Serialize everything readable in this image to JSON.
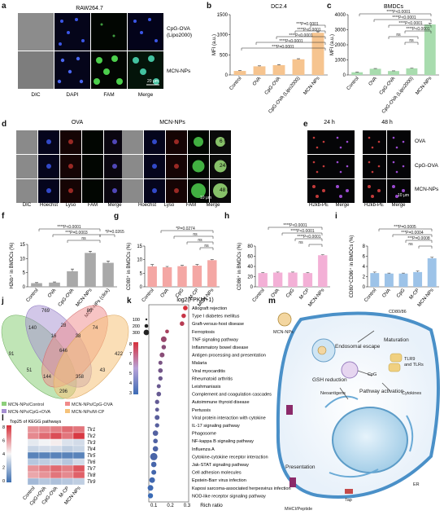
{
  "panel_letters": [
    "a",
    "b",
    "c",
    "d",
    "e",
    "f",
    "g",
    "h",
    "i",
    "j",
    "k",
    "l",
    "m"
  ],
  "panel_a": {
    "cell_line": "RAW264.7",
    "columns": [
      "DIC",
      "DAPI",
      "FAM",
      "Merge"
    ],
    "rows": [
      "CpG-OVA\n(Lipo2000)",
      "MCN-NPs"
    ],
    "row_line1": "CpG-OVA",
    "row_line2": "(Lipo2000)",
    "row2": "MCN-NPs",
    "scale": "20 μm"
  },
  "panel_d": {
    "group_left": "OVA",
    "group_right": "MCN-NPs",
    "columns": [
      "DIC",
      "Hoechst",
      "Lyso",
      "FAM",
      "Merge"
    ],
    "times": [
      "6 h",
      "24 h",
      "48 h"
    ],
    "scale": "10 μm"
  },
  "panel_e": {
    "times": [
      "24 h",
      "48 h"
    ],
    "columns": [
      "H2kb-PE",
      "Merge"
    ],
    "rows": [
      "OVA",
      "CpG-OVA",
      "MCN-NPs"
    ],
    "scale": "10 μm"
  },
  "sig_labels": {
    "p4": "****P<0.0001",
    "p3": "***P=0.0001",
    "ns": "ns",
    "f1": "****P<0.0001",
    "f2": "***P=0.0003",
    "f3": "*P=0.0265",
    "g1": "*P=0.0274",
    "i1": "***P=0.0005",
    "i2": "***P=0.0004",
    "i3": "***P=0.0008"
  },
  "chart_data": [
    {
      "panel": "b",
      "type": "bar",
      "title": "DC2.4",
      "ylabel": "MFI (a.u.)",
      "ylim": [
        0,
        1500
      ],
      "yticks": [
        0,
        500,
        1000,
        1500
      ],
      "categories": [
        "Control",
        "OVA",
        "CpG-OVA",
        "CpG-OVA (Lipo2000)",
        "MCN-NPs"
      ],
      "values": [
        100,
        215,
        245,
        390,
        1050
      ],
      "errors": [
        8,
        12,
        12,
        15,
        25
      ],
      "color": "#f6c48f"
    },
    {
      "panel": "c",
      "type": "bar",
      "title": "BMDCs",
      "ylabel": "MFI (a.u.)",
      "ylim": [
        0,
        4000
      ],
      "yticks": [
        0,
        1000,
        2000,
        3000,
        4000
      ],
      "categories": [
        "Control",
        "OVA",
        "CpG-OVA",
        "CpG-OVA (Lipo2000)",
        "MCN-NPs"
      ],
      "values": [
        180,
        410,
        260,
        440,
        3350
      ],
      "errors": [
        15,
        20,
        15,
        20,
        80
      ],
      "color": "#a8dcae"
    },
    {
      "panel": "f",
      "type": "bar",
      "ylabel": "H2kb⁺ in BMDCs (%)",
      "ylim": [
        0,
        15
      ],
      "yticks": [
        0,
        5,
        10,
        15
      ],
      "categories": [
        "Control",
        "OVA",
        "CpG-OVA",
        "MCN-NPs",
        "MCN-NPs (click)"
      ],
      "values": [
        1.3,
        1.5,
        5.5,
        12,
        8.5
      ],
      "errors": [
        0.2,
        0.2,
        0.8,
        0.6,
        0.6
      ],
      "color": "#a9a9a9"
    },
    {
      "panel": "g",
      "type": "bar",
      "ylabel": "CD80⁺ in BMDCs (%)",
      "ylim": [
        0,
        15
      ],
      "yticks": [
        0,
        5,
        10,
        15
      ],
      "categories": [
        "Control",
        "OVA",
        "CpG",
        "M-CP",
        "MCN-NPs"
      ],
      "values": [
        7.5,
        7.2,
        7.6,
        7.8,
        9.8
      ],
      "errors": [
        0.7,
        0.3,
        0.3,
        0.4,
        0.2
      ],
      "color": "#f4a7a4"
    },
    {
      "panel": "h",
      "type": "bar",
      "ylabel": "CD86⁺ in BMDCs (%)",
      "ylim": [
        0,
        80
      ],
      "yticks": [
        0,
        20,
        40,
        60,
        80
      ],
      "categories": [
        "Control",
        "OVA",
        "CpG",
        "M-CP",
        "MCN-NPs"
      ],
      "values": [
        27,
        28,
        28,
        27,
        62
      ],
      "errors": [
        1,
        1,
        1,
        1,
        1
      ],
      "color": "#f3b0d6"
    },
    {
      "panel": "i",
      "type": "bar",
      "ylabel": "CD80⁺CD86⁺ in BMDCs (%)",
      "ylim": [
        0,
        8
      ],
      "yticks": [
        0,
        2,
        4,
        6,
        8
      ],
      "categories": [
        "Control",
        "OVA",
        "CpG",
        "M-CP",
        "MCN-NPs"
      ],
      "values": [
        2.7,
        2.6,
        2.6,
        2.9,
        5.6
      ],
      "errors": [
        0.2,
        0.1,
        0.1,
        0.2,
        0.2
      ],
      "color": "#9dc3e8"
    },
    {
      "panel": "j",
      "type": "venn",
      "sets": [
        "MCN-NPs/Control",
        "MCN-NPs/CpG-OVA",
        "MCN-NPs/CpG+OVA",
        "MCN-NPs/M-CP"
      ],
      "counts": [
        "769",
        "80",
        "140",
        "28",
        "74",
        "91",
        "646",
        "422",
        "51",
        "358",
        "144",
        "43",
        "296",
        "16",
        "38"
      ]
    },
    {
      "panel": "k",
      "type": "scatter",
      "title": "Top25 of KEGG pathways",
      "xlabel": "Rich ratio",
      "xticks": [
        "0.1",
        "0.2",
        "0.3"
      ],
      "size_legend_title": "Gene number",
      "size_legend": [
        "100",
        "200",
        "300"
      ],
      "color_legend_title": "-log10 Q value",
      "color_ticks": [
        "8",
        "7",
        "6",
        "5",
        "4",
        "3"
      ],
      "pathways": [
        "Allograft rejection",
        "Type I diabetes mellitus",
        "Graft-versus-host disease",
        "Ferroptosis",
        "TNF signaling pathway",
        "Inflammatory bowel disease",
        "Antigen processing and presentation",
        "Malaria",
        "Viral myocarditis",
        "Rheumatoid arthritis",
        "Leishmaniasis",
        "Complement and coagulation cascades",
        "Autoimmune thyroid disease",
        "Pertussis",
        "Viral protein interaction with cytokine",
        "IL-17 signaling pathway",
        "Phagosome",
        "NF-kappa B signaling pathway",
        "Influenza A",
        "Cytokine-cytokine receptor interaction",
        "Jak-STAT signaling pathway",
        "Cell adhesion molecules",
        "Epstein-Barr virus infection",
        "Kaposi sarcoma-associated herpesvirus infection",
        "NOD-like receptor signaling pathway"
      ],
      "rich_ratio": [
        0.29,
        0.28,
        0.27,
        0.18,
        0.16,
        0.16,
        0.15,
        0.14,
        0.14,
        0.14,
        0.13,
        0.13,
        0.12,
        0.12,
        0.12,
        0.12,
        0.11,
        0.11,
        0.11,
        0.1,
        0.1,
        0.1,
        0.09,
        0.08,
        0.08
      ],
      "gene_number": [
        40,
        38,
        38,
        25,
        60,
        38,
        45,
        30,
        40,
        35,
        30,
        40,
        35,
        28,
        45,
        35,
        55,
        40,
        55,
        90,
        55,
        45,
        60,
        60,
        50
      ],
      "neglog_q": [
        8,
        7.5,
        7,
        6.5,
        6,
        5.5,
        5.5,
        5,
        4.8,
        4.6,
        4.5,
        4.4,
        4.3,
        4.2,
        4,
        3.9,
        3.8,
        3.7,
        3.6,
        3.5,
        3.4,
        3.3,
        3.2,
        3.1,
        3
      ]
    },
    {
      "panel": "l",
      "type": "heatmap",
      "title": "log2(FPKM+1)",
      "columns": [
        "Control",
        "CpG+OVA",
        "CpG-OVA",
        "M-CP",
        "MCN-NPs"
      ],
      "rows": [
        "Tlr1",
        "Tlr2",
        "Tlr3",
        "Tlr4",
        "Tlr5",
        "Tlr6",
        "Tlr7",
        "Tlr8",
        "Tlr9"
      ],
      "scale_ticks": [
        "8",
        "6",
        "4",
        "2",
        "0"
      ],
      "values": [
        [
          6.0,
          6.2,
          6.4,
          6.8,
          6.6
        ],
        [
          6.2,
          6.8,
          7.4,
          6.6,
          7.8
        ],
        [
          3.6,
          3.9,
          4.2,
          3.4,
          3.2
        ],
        [
          3.0,
          3.2,
          3.2,
          2.8,
          3.0
        ],
        [
          0.6,
          0.6,
          0.6,
          0.6,
          0.6
        ],
        [
          2.6,
          2.8,
          3.0,
          2.6,
          3.2
        ],
        [
          6.0,
          6.4,
          6.8,
          6.4,
          7.2
        ],
        [
          5.6,
          6.0,
          6.6,
          6.2,
          7.0
        ],
        [
          2.2,
          2.6,
          2.4,
          2.6,
          2.8
        ]
      ]
    }
  ],
  "panel_m": {
    "labels": [
      "CD80/86",
      "MCN-NPs",
      "Maturation",
      "Endosomal escape",
      "TLR9",
      "and TLRs",
      "GSH reduction",
      "CpG",
      "Neoantigens",
      "Pathway activation",
      "Cytokines",
      "Presentation",
      "ER",
      "Tap",
      "MHCI/Peptide"
    ]
  }
}
